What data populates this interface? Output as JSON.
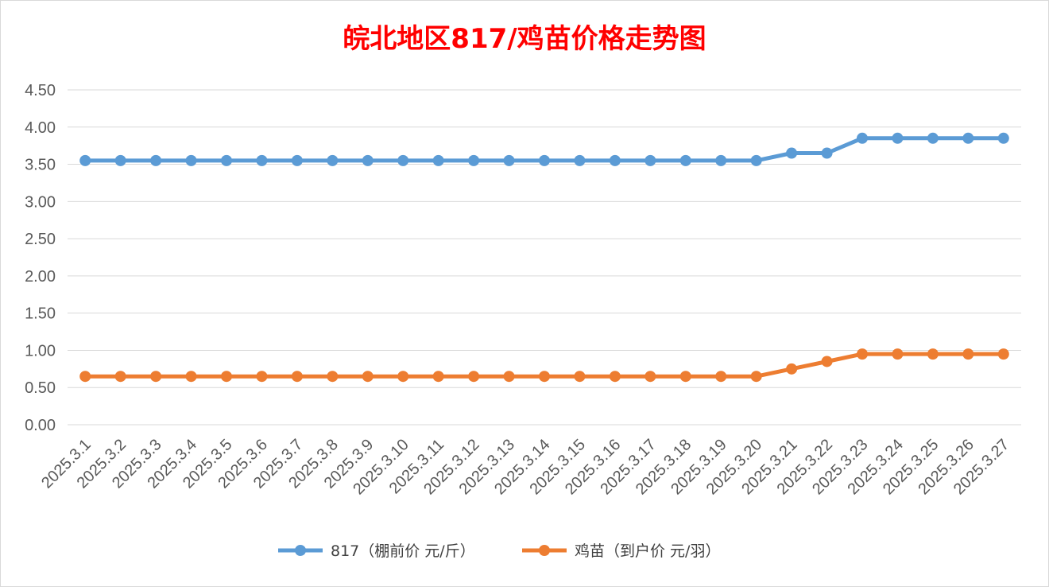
{
  "chart_data": {
    "type": "line",
    "title": "皖北地区817/鸡苗价格走势图",
    "xlabel": "",
    "ylabel": "",
    "categories": [
      "2025.3.1",
      "2025.3.2",
      "2025.3.3",
      "2025.3.4",
      "2025.3.5",
      "2025.3.6",
      "2025.3.7",
      "2025.3.8",
      "2025.3.9",
      "2025.3.10",
      "2025.3.11",
      "2025.3.12",
      "2025.3.13",
      "2025.3.14",
      "2025.3.15",
      "2025.3.16",
      "2025.3.17",
      "2025.3.18",
      "2025.3.19",
      "2025.3.20",
      "2025.3.21",
      "2025.3.22",
      "2025.3.23",
      "2025.3.24",
      "2025.3.25",
      "2025.3.26",
      "2025.3.27"
    ],
    "ylim": [
      0,
      4.5
    ],
    "yticks": [
      "0.00",
      "0.50",
      "1.00",
      "1.50",
      "2.00",
      "2.50",
      "3.00",
      "3.50",
      "4.00",
      "4.50"
    ],
    "grid": true,
    "legend_position": "bottom",
    "series": [
      {
        "name": "817（棚前价 元/斤）",
        "color": "#5b9bd5",
        "values": [
          3.55,
          3.55,
          3.55,
          3.55,
          3.55,
          3.55,
          3.55,
          3.55,
          3.55,
          3.55,
          3.55,
          3.55,
          3.55,
          3.55,
          3.55,
          3.55,
          3.55,
          3.55,
          3.55,
          3.55,
          3.65,
          3.65,
          3.85,
          3.85,
          3.85,
          3.85,
          3.85
        ]
      },
      {
        "name": "鸡苗（到户价 元/羽）",
        "color": "#ed7d31",
        "values": [
          0.65,
          0.65,
          0.65,
          0.65,
          0.65,
          0.65,
          0.65,
          0.65,
          0.65,
          0.65,
          0.65,
          0.65,
          0.65,
          0.65,
          0.65,
          0.65,
          0.65,
          0.65,
          0.65,
          0.65,
          0.75,
          0.85,
          0.95,
          0.95,
          0.95,
          0.95,
          0.95
        ]
      }
    ]
  }
}
